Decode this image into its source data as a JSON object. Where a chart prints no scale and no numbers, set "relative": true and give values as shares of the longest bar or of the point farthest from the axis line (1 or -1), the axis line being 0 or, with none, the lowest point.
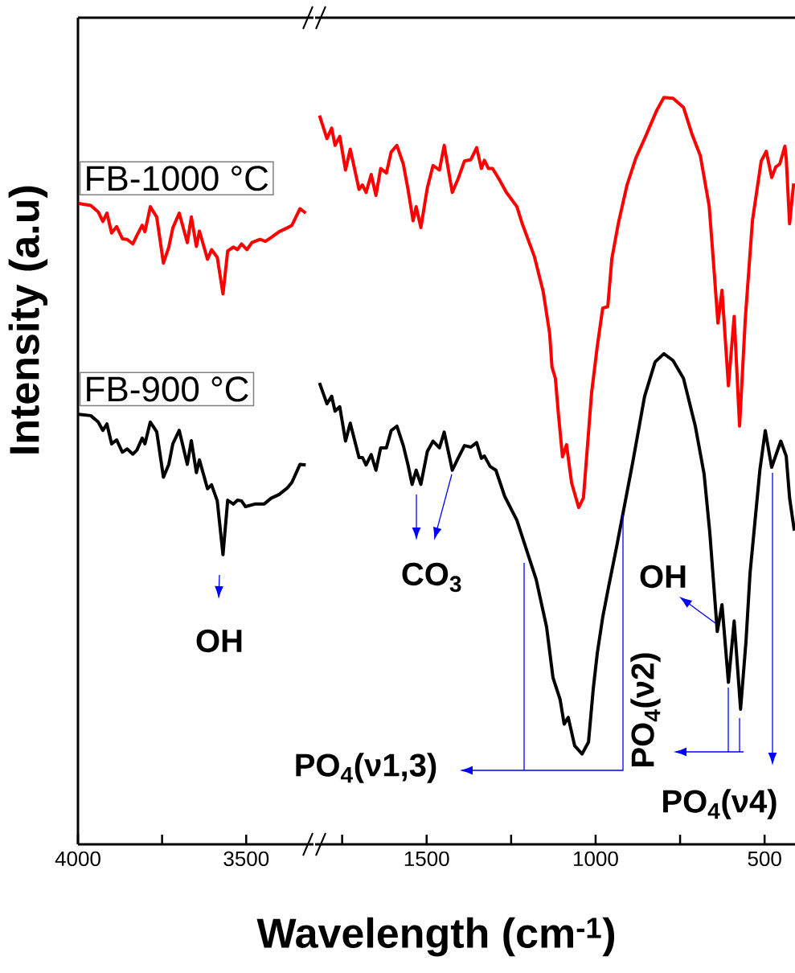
{
  "chart_data": [
    {
      "type": "line",
      "ylabel": "Intensity (a.u)",
      "relative": true,
      "xlim": [
        4000,
        3300
      ],
      "xticks": [
        4000,
        {
          "value": 3750,
          "label": null
        },
        3500
      ],
      "series": [
        {
          "name": "FB-1000 °C",
          "color": "#ff0000",
          "x": [
            3998,
            3962,
            3940,
            3926,
            3914,
            3900,
            3885,
            3868,
            3854,
            3837,
            3825,
            3809,
            3801,
            3785,
            3766,
            3746,
            3730,
            3718,
            3699,
            3675,
            3663,
            3648,
            3639,
            3615,
            3603,
            3586,
            3569,
            3555,
            3538,
            3526,
            3514,
            3498,
            3483,
            3459,
            3443,
            3426,
            3402,
            3378,
            3364,
            3340,
            3323
          ],
          "values": [
            1.0,
            0.997,
            0.987,
            0.972,
            0.985,
            0.954,
            0.964,
            0.945,
            0.944,
            0.937,
            0.95,
            0.966,
            0.956,
            0.995,
            0.979,
            0.907,
            0.932,
            0.962,
            0.985,
            0.939,
            0.979,
            0.933,
            0.957,
            0.913,
            0.928,
            0.916,
            0.859,
            0.926,
            0.932,
            0.928,
            0.937,
            0.928,
            0.939,
            0.944,
            0.941,
            0.947,
            0.956,
            0.962,
            0.966,
            0.992,
            0.985
          ]
        },
        {
          "name": "FB-900 °C",
          "color": "#000000",
          "x": [
            3998,
            3962,
            3940,
            3926,
            3914,
            3900,
            3885,
            3868,
            3854,
            3837,
            3825,
            3809,
            3801,
            3785,
            3766,
            3746,
            3730,
            3718,
            3699,
            3675,
            3663,
            3648,
            3639,
            3615,
            3603,
            3586,
            3569,
            3555,
            3538,
            3526,
            3514,
            3502,
            3474,
            3447,
            3426,
            3402,
            3378,
            3364,
            3340,
            3323
          ],
          "values": [
            0.671,
            0.669,
            0.659,
            0.646,
            0.656,
            0.625,
            0.631,
            0.612,
            0.617,
            0.609,
            0.615,
            0.634,
            0.625,
            0.659,
            0.644,
            0.573,
            0.593,
            0.625,
            0.646,
            0.593,
            0.63,
            0.58,
            0.6,
            0.555,
            0.561,
            0.536,
            0.452,
            0.537,
            0.531,
            0.537,
            0.536,
            0.527,
            0.531,
            0.531,
            0.54,
            0.546,
            0.556,
            0.565,
            0.593,
            0.592
          ]
        }
      ],
      "annotations": [
        "OH"
      ]
    },
    {
      "type": "line",
      "xlabel": "Wavelength (cm$^{-1}$)",
      "relative": true,
      "xlim": [
        1830,
        410
      ],
      "xticks": [
        {
          "value": 1750,
          "label": null
        },
        1500,
        {
          "value": 1250,
          "label": null
        },
        1000,
        {
          "value": 750,
          "label": null
        },
        500
      ],
      "series": [
        {
          "color": "#ff0000",
          "x": [
            1817,
            1795,
            1781,
            1771,
            1757,
            1740,
            1726,
            1700,
            1690,
            1679,
            1664,
            1650,
            1636,
            1619,
            1605,
            1588,
            1569,
            1555,
            1540,
            1531,
            1517,
            1498,
            1481,
            1462,
            1448,
            1424,
            1407,
            1388,
            1369,
            1352,
            1338,
            1329,
            1317,
            1305,
            1286,
            1264,
            1233,
            1217,
            1181,
            1155,
            1136,
            1129,
            1119,
            1110,
            1098,
            1086,
            1071,
            1050,
            1036,
            1012,
            995,
            979,
            964,
            952,
            933,
            907,
            881,
            855,
            819,
            798,
            771,
            740,
            714,
            690,
            664,
            652,
            638,
            626,
            607,
            590,
            574,
            557,
            536,
            510,
            495,
            479,
            467,
            455,
            440,
            436,
            426,
            414
          ],
          "values": [
            0.976,
            0.945,
            0.959,
            0.936,
            0.948,
            0.903,
            0.931,
            0.877,
            0.883,
            0.873,
            0.897,
            0.869,
            0.905,
            0.899,
            0.927,
            0.936,
            0.911,
            0.877,
            0.835,
            0.854,
            0.826,
            0.879,
            0.909,
            0.903,
            0.936,
            0.873,
            0.891,
            0.915,
            0.917,
            0.933,
            0.905,
            0.916,
            0.905,
            0.905,
            0.891,
            0.873,
            0.854,
            0.831,
            0.787,
            0.74,
            0.684,
            0.639,
            0.624,
            0.576,
            0.519,
            0.535,
            0.484,
            0.451,
            0.464,
            0.604,
            0.667,
            0.718,
            0.72,
            0.784,
            0.831,
            0.883,
            0.919,
            0.945,
            0.983,
            1.0,
            0.999,
            0.987,
            0.95,
            0.922,
            0.855,
            0.784,
            0.698,
            0.742,
            0.614,
            0.707,
            0.56,
            0.704,
            0.835,
            0.915,
            0.928,
            0.893,
            0.907,
            0.911,
            0.935,
            0.919,
            0.831,
            0.885
          ]
        },
        {
          "color": "#000000",
          "x": [
            1817,
            1795,
            1781,
            1771,
            1757,
            1740,
            1726,
            1700,
            1690,
            1679,
            1664,
            1650,
            1636,
            1619,
            1605,
            1588,
            1569,
            1555,
            1543,
            1531,
            1517,
            1498,
            1481,
            1462,
            1448,
            1424,
            1407,
            1388,
            1369,
            1352,
            1338,
            1329,
            1312,
            1295,
            1269,
            1233,
            1176,
            1145,
            1126,
            1105,
            1093,
            1081,
            1062,
            1040,
            1021,
            1007,
            995,
            979,
            962,
            938,
            890,
            855,
            824,
            798,
            771,
            740,
            705,
            679,
            662,
            640,
            626,
            607,
            590,
            571,
            555,
            543,
            514,
            498,
            479,
            452,
            436,
            426,
            412
          ],
          "values": [
            0.618,
            0.59,
            0.6,
            0.58,
            0.586,
            0.54,
            0.564,
            0.518,
            0.518,
            0.508,
            0.522,
            0.501,
            0.531,
            0.531,
            0.554,
            0.56,
            0.534,
            0.508,
            0.482,
            0.501,
            0.482,
            0.526,
            0.54,
            0.531,
            0.552,
            0.501,
            0.517,
            0.534,
            0.532,
            0.538,
            0.517,
            0.52,
            0.506,
            0.501,
            0.466,
            0.434,
            0.355,
            0.291,
            0.223,
            0.194,
            0.161,
            0.17,
            0.132,
            0.121,
            0.137,
            0.208,
            0.256,
            0.304,
            0.344,
            0.398,
            0.512,
            0.6,
            0.646,
            0.657,
            0.648,
            0.624,
            0.56,
            0.496,
            0.417,
            0.285,
            0.321,
            0.217,
            0.299,
            0.181,
            0.272,
            0.363,
            0.501,
            0.554,
            0.505,
            0.54,
            0.52,
            0.464,
            0.42
          ]
        }
      ],
      "annotations": [
        "CO$_{3}$",
        "OH",
        "PO$_{4}$(ν1,3)",
        "PO$_{4}$(ν2)",
        "PO$_{4}$(ν4)"
      ]
    }
  ]
}
